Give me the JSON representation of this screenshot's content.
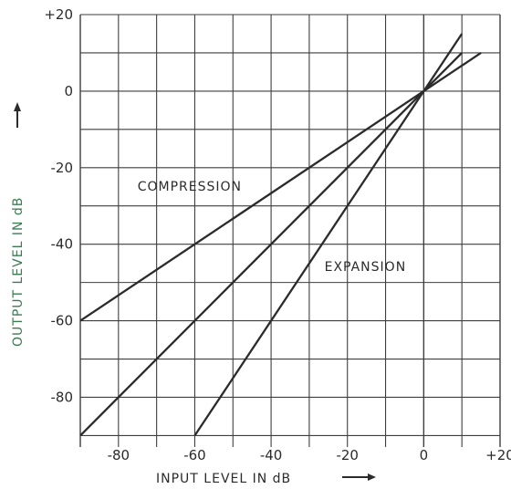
{
  "chart_data": {
    "type": "line",
    "xlabel": "INPUT LEVEL IN dB",
    "ylabel": "OUTPUT LEVEL IN dB",
    "xlim": [
      -90,
      20
    ],
    "ylim": [
      -93,
      20
    ],
    "x_ticks": [
      -80,
      -60,
      -40,
      -20,
      0,
      20
    ],
    "y_ticks": [
      20,
      0,
      -20,
      -40,
      -60,
      -80
    ],
    "x_tick_labels": [
      "-80",
      "-60",
      "-40",
      "-20",
      "0",
      "+20"
    ],
    "y_tick_labels": [
      "+20",
      "0",
      "-20",
      "-40",
      "-60",
      "-80"
    ],
    "grid": true,
    "series": [
      {
        "x": [
          -90,
          15
        ],
        "y": [
          -60,
          10
        ]
      },
      {
        "x": [
          -90,
          10
        ],
        "y": [
          -90,
          10
        ]
      },
      {
        "x": [
          -60,
          10
        ],
        "y": [
          -90,
          15
        ]
      }
    ],
    "annotations": [
      {
        "text": "COMPRESSION",
        "x": -75,
        "y": -26
      },
      {
        "text": "EXPANSION",
        "x": -26,
        "y": -47
      }
    ],
    "colors": {
      "axis_label": "#3c7a52",
      "ink": "#2b2b2b",
      "grid": "#3f3f3f"
    }
  }
}
